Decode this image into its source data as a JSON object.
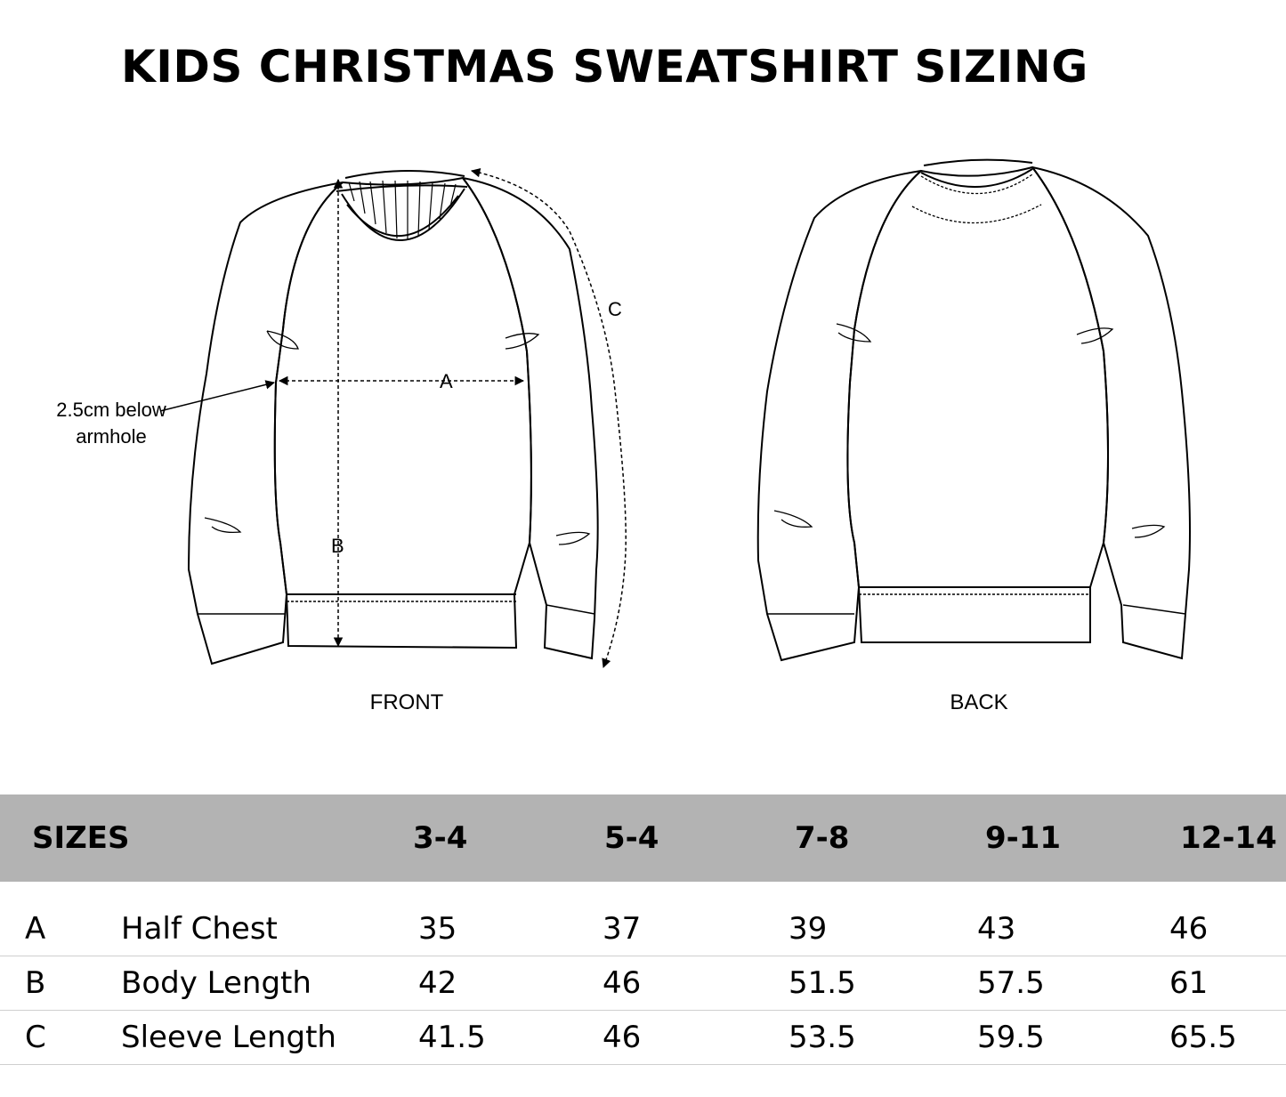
{
  "title": "KIDS CHRISTMAS SWEATSHIRT SIZING",
  "diagram": {
    "front_label": "FRONT",
    "back_label": "BACK",
    "label_a": "A",
    "label_b": "B",
    "label_c": "C",
    "note_line1": "2.5cm below",
    "note_line2": "armhole"
  },
  "table": {
    "header": "SIZES",
    "sizes": [
      "3-4",
      "5-4",
      "7-8",
      "9-11",
      "12-14"
    ],
    "rows": [
      {
        "key": "A",
        "label": "Half Chest",
        "values": [
          "35",
          "37",
          "39",
          "43",
          "46"
        ]
      },
      {
        "key": "B",
        "label": "Body Length",
        "values": [
          "42",
          "46",
          "51.5",
          "57.5",
          "61"
        ]
      },
      {
        "key": "C",
        "label": "Sleeve Length",
        "values": [
          "41.5",
          "46",
          "53.5",
          "59.5",
          "65.5"
        ]
      }
    ]
  },
  "colors": {
    "header_bg": "#b3b3b3",
    "row_divider": "#cfcfcf"
  }
}
